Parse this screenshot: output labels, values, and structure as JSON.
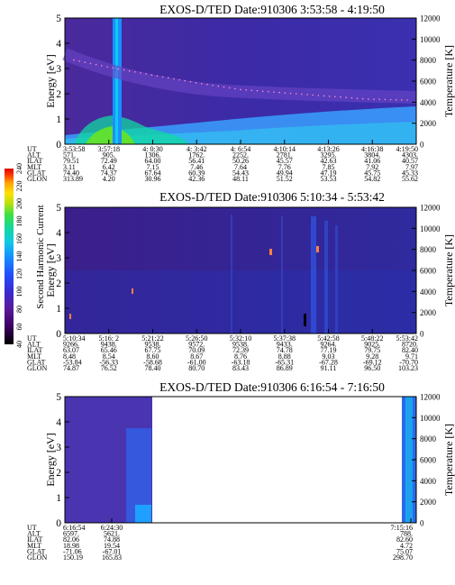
{
  "colors": {
    "background": "#ffffff",
    "colorscale": [
      "#000000",
      "#3a0060",
      "#5a1a9a",
      "#3a2ad0",
      "#2050ff",
      "#1490ff",
      "#10c8e8",
      "#10d8a0",
      "#40e040",
      "#b8e010",
      "#ffe000",
      "#ffa000",
      "#ff4000",
      "#e00000"
    ]
  },
  "colorbar": {
    "label": "Second Harmonic Current",
    "ticks": [
      "40",
      "60",
      "80",
      "100",
      "120",
      "140",
      "160",
      "180",
      "200",
      "220",
      "240"
    ]
  },
  "row_labels": [
    "UT",
    "ALT",
    "ILAT",
    "MLT",
    "GLAT",
    "GLON"
  ],
  "chart_data": [
    {
      "type": "heatmap",
      "title": "EXOS-D/TED   Date:910306  3:53:58 - 4:19:50",
      "ylabel": "Energy [eV]",
      "ylabel_right": "Temperature [K]",
      "ylim": [
        0,
        5
      ],
      "ylim_right": [
        0,
        12000
      ],
      "yticks": [
        "0",
        "1",
        "2",
        "3",
        "4",
        "5"
      ],
      "yticks_right": [
        "0",
        "2000",
        "4000",
        "6000",
        "8000",
        "10000",
        "12000"
      ],
      "columns": [
        [
          "3:53:58",
          "571.",
          "79.51",
          "3.11",
          "74.40",
          "313.89"
        ],
        [
          "3:57:18",
          "905.",
          "72.49",
          "6.42",
          "74.37",
          "4.20"
        ],
        [
          "4: 0:30",
          "1306.",
          "64.00",
          "7.15",
          "67.64",
          "30.96"
        ],
        [
          "4: 3:42",
          "1762.",
          "56.41",
          "7.46",
          "60.39",
          "42.36"
        ],
        [
          "4: 6:54",
          "2252.",
          "50.26",
          "7.64",
          "54.43",
          "48.11"
        ],
        [
          "4:10:14",
          "2781.",
          "45.57",
          "7.76",
          "49.94",
          "51.52"
        ],
        [
          "4:13:26",
          "3295.",
          "42.63",
          "7.85",
          "47.19",
          "53.53"
        ],
        [
          "4:16:38",
          "3804.",
          "41.06",
          "7.92",
          "45.75",
          "54.82"
        ],
        [
          "4:19:50",
          "4303.",
          "40.57",
          "7.97",
          "45.33",
          "55.62"
        ]
      ],
      "temperature": [
        8000,
        7200,
        6500,
        5800,
        5200,
        4900,
        4600,
        4300,
        4200
      ]
    },
    {
      "type": "heatmap",
      "title": "EXOS-D/TED   Date:910306  5:10:34 - 5:53:42",
      "ylabel": "Energy [eV]",
      "ylabel_right": "Temperature [K]",
      "ylim": [
        0,
        5
      ],
      "ylim_right": [
        0,
        12000
      ],
      "yticks": [
        "0",
        "1",
        "2",
        "3",
        "4",
        "5"
      ],
      "yticks_right": [
        "0",
        "2000",
        "4000",
        "6000",
        "8000",
        "10000",
        "12000"
      ],
      "columns": [
        [
          "5:10:34",
          "9266.",
          "63.07",
          "8.48",
          "-53.84",
          "74.87"
        ],
        [
          "5:16: 2",
          "9438.",
          "65.46",
          "8.54",
          "-56.33",
          "76.52"
        ],
        [
          "5:21:22",
          "9538.",
          "67.75",
          "8.60",
          "-58.68",
          "78.40"
        ],
        [
          "5:26:50",
          "9572.",
          "70.09",
          "8.67",
          "-61.00",
          "80.70"
        ],
        [
          "5:32:10",
          "9538.",
          "72.39",
          "8.76",
          "-63.18",
          "83.43"
        ],
        [
          "5:37:38",
          "9433.",
          "74.78",
          "8.88",
          "-65.31",
          "86.89"
        ],
        [
          "5:42:58",
          "9264.",
          "77.19",
          "9.03",
          "-67.28",
          "91.11"
        ],
        [
          "5:48:22",
          "9025.",
          "79.75",
          "9.28",
          "-69.12",
          "96.50"
        ],
        [
          "5:53:42",
          "8720.",
          "82.40",
          "9.71",
          "-70.70",
          "103.23"
        ]
      ],
      "temperature": []
    },
    {
      "type": "heatmap",
      "title": "EXOS-D/TED   Date:910306  6:16:54 - 7:16:50",
      "ylabel": "Energy [eV]",
      "ylabel_right": "Temperature [K]",
      "ylim": [
        0,
        5
      ],
      "ylim_right": [
        0,
        12000
      ],
      "yticks": [
        "0",
        "1",
        "2",
        "3",
        "4",
        "5"
      ],
      "yticks_right": [
        "0",
        "2000",
        "4000",
        "6000",
        "8000",
        "10000",
        "12000"
      ],
      "columns": [
        [
          "6:16:54",
          "6597.",
          "82.06",
          "18.98",
          "-71.06",
          "150.19"
        ],
        [
          "6:24:30",
          "5621.",
          "74.88",
          "19.54",
          "-67.01",
          "165.83"
        ],
        [
          "7:15:16",
          "788.",
          "82.60",
          "4.72",
          "75.07",
          "298.70"
        ]
      ],
      "temperature": []
    }
  ]
}
